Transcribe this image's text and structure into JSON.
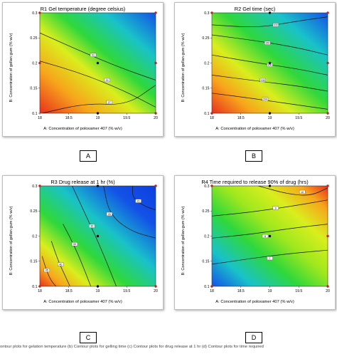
{
  "chart_data": [
    {
      "type": "contour",
      "title": "R1 Gel temperature (degree celsius)",
      "xlabel": "A: Concentration of poloxamer 407 (% w/v)",
      "ylabel": "B: Concentration of gellan gum (% w/v)",
      "x_ticks": [
        "18",
        "18.5",
        "19",
        "19.5",
        "20"
      ],
      "y_ticks": [
        "0.1",
        "0.15",
        "0.2",
        "0.25",
        "0.3"
      ],
      "xlim": [
        18,
        20
      ],
      "ylim": [
        0.1,
        0.3
      ],
      "contour_labels": [
        "27",
        "29",
        "31"
      ],
      "color_scale": "high values red at lower-left, low values blue at upper-right",
      "design_points": [
        [
          18,
          0.3
        ],
        [
          20,
          0.3
        ],
        [
          18,
          0.2
        ],
        [
          19,
          0.2
        ],
        [
          20,
          0.2
        ],
        [
          19,
          0.1
        ],
        [
          20,
          0.1
        ]
      ],
      "panel_label": "A"
    },
    {
      "type": "contour",
      "title": "R2 Gel time (sec)",
      "xlabel": "A: Concentration of poloxamer 407 (% w/v)",
      "ylabel": "B: Concentration of gellan gum (% w/v)",
      "x_ticks": [
        "18",
        "18.5",
        "19",
        "19.5",
        "20"
      ],
      "y_ticks": [
        "0.1",
        "0.15",
        "0.2",
        "0.25",
        "0.3"
      ],
      "xlim": [
        18,
        20
      ],
      "ylim": [
        0.1,
        0.3
      ],
      "contour_labels": [
        "100",
        "150",
        "150",
        "200"
      ],
      "color_scale": "high values red at lower-left, low values blue at upper-right",
      "design_points": [
        [
          18,
          0.3
        ],
        [
          19,
          0.3
        ],
        [
          20,
          0.3
        ],
        [
          19,
          0.2
        ],
        [
          20,
          0.2
        ],
        [
          18,
          0.1
        ],
        [
          19,
          0.1
        ],
        [
          20,
          0.1
        ]
      ],
      "panel_label": "B"
    },
    {
      "type": "contour",
      "title": "R3 Drug release at 1 hr (%)",
      "xlabel": "A: Concentration of poloxamer 407 (% w/v)",
      "ylabel": "B: Concentration of gellan gum (% w/v)",
      "x_ticks": [
        "18",
        "18.5",
        "19",
        "19.5",
        "20"
      ],
      "y_ticks": [
        "0.1",
        "0.15",
        "0.2",
        "0.25",
        "0.3"
      ],
      "xlim": [
        18,
        20
      ],
      "ylim": [
        0.1,
        0.3
      ],
      "contour_labels": [
        "20",
        "25",
        "30",
        "35",
        "40",
        "45"
      ],
      "color_scale": "high values red at lower-left, low values blue at upper-right",
      "design_points": [
        [
          18,
          0.3
        ],
        [
          19,
          0.3
        ],
        [
          20,
          0.3
        ],
        [
          19,
          0.2
        ],
        [
          18,
          0.1
        ],
        [
          19,
          0.1
        ],
        [
          20,
          0.1
        ]
      ],
      "panel_label": "C"
    },
    {
      "type": "contour",
      "title": "R4 Time required to release 90% of drug (hrs)",
      "xlabel": "A: Concentration of poloxamer 407 (% w/v)",
      "ylabel": "B: Concentration of gellan gum (% w/v)",
      "x_ticks": [
        "18",
        "18.5",
        "19",
        "19.5",
        "20"
      ],
      "y_ticks": [
        "0.1",
        "0.15",
        "0.2",
        "0.25",
        "0.3"
      ],
      "xlim": [
        18,
        20
      ],
      "ylim": [
        0.1,
        0.3
      ],
      "contour_labels": [
        "7",
        "8",
        "9",
        "10"
      ],
      "color_scale": "high values red at upper-right, low values blue at lower-left",
      "design_points": [
        [
          18,
          0.3
        ],
        [
          19,
          0.3
        ],
        [
          20,
          0.3
        ],
        [
          19,
          0.2
        ],
        [
          20,
          0.2
        ],
        [
          18,
          0.1
        ],
        [
          20,
          0.1
        ]
      ],
      "panel_label": "D"
    }
  ],
  "caption": "ontour plots for gelation temperature (b) Contour plots for gelling time (c) Contour plots for drug release at 1 hr (d) Contour plots for time required"
}
